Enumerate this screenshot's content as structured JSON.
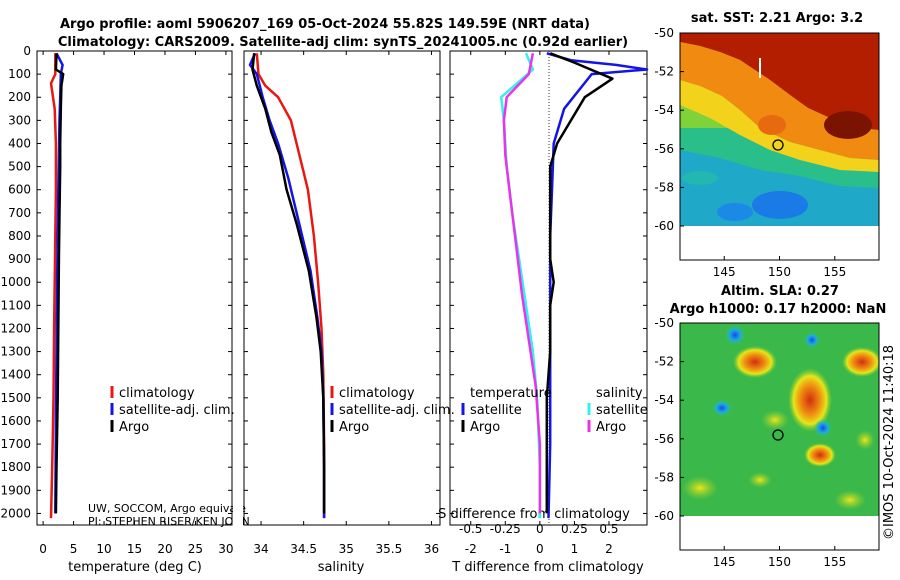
{
  "header": {
    "title_line1": "Argo profile: aoml 5906207_169 05-Oct-2024 55.82S 149.59E (NRT data)",
    "title_line2": "Climatology: CARS2009. Satellite-adj clim: synTS_20241005.nc (0.92d earlier)"
  },
  "credits": {
    "line1": "UW, SOCCOM, Argo equivale",
    "line2": "PI: STEPHEN RISER/KEN JOHN",
    "watermark": "©IMOS 10-Oct-2024 11:40:18"
  },
  "colors": {
    "climatology": "#e8170f",
    "satellite": "#1414e6",
    "argo": "#000000",
    "cyan": "#33f0f0",
    "magenta": "#e833e8"
  },
  "legend": {
    "climatology": "climatology",
    "satellite_clim": "satellite-adj. clim.",
    "argo": "Argo",
    "temperature": "temperature",
    "salinity": "salinity",
    "satellite": "satellite"
  },
  "chart_data": [
    {
      "type": "line",
      "title": "",
      "xlabel": "temperature (deg C)",
      "ylabel": "",
      "xlim": [
        -1,
        31
      ],
      "ylim": [
        2050,
        0
      ],
      "xticks": [
        0,
        5,
        10,
        15,
        20,
        25,
        30
      ],
      "xtick_labels": [
        "0",
        "5",
        "10",
        "15",
        "20",
        "25",
        "30"
      ],
      "yticks": [
        0,
        100,
        200,
        300,
        400,
        500,
        600,
        700,
        800,
        900,
        1000,
        1100,
        1200,
        1300,
        1400,
        1500,
        1600,
        1700,
        1800,
        1900,
        2000
      ],
      "ytick_labels": [
        "0",
        "100",
        "200",
        "300",
        "400",
        "500",
        "600",
        "700",
        "800",
        "900",
        "1000",
        "1100",
        "1200",
        "1300",
        "1400",
        "1500",
        "1600",
        "1700",
        "1800",
        "1900",
        "2000"
      ],
      "series": [
        {
          "name": "climatology",
          "color": "#e8170f",
          "x": [
            2.0,
            2.0,
            1.3,
            1.9,
            2.1,
            2.1,
            2.0,
            1.9,
            1.8,
            1.7,
            1.5,
            1.3
          ],
          "y": [
            10,
            100,
            140,
            250,
            400,
            600,
            800,
            1000,
            1200,
            1500,
            1800,
            2020
          ]
        },
        {
          "name": "satellite-adj. clim.",
          "color": "#1414e6",
          "x": [
            2.2,
            3.2,
            2.9,
            2.8,
            2.7,
            2.6,
            2.5,
            2.4,
            2.3,
            2.2,
            2.1,
            2.0
          ],
          "y": [
            10,
            60,
            100,
            200,
            300,
            450,
            600,
            800,
            1000,
            1300,
            1600,
            2000
          ]
        },
        {
          "name": "Argo",
          "color": "#000000",
          "x": [
            2.2,
            2.1,
            3.3,
            3.0,
            2.9,
            2.8,
            2.8,
            2.7,
            2.6,
            2.5,
            2.4,
            2.2,
            2.1
          ],
          "y": [
            10,
            80,
            100,
            150,
            250,
            400,
            500,
            700,
            900,
            1200,
            1500,
            1800,
            2000
          ]
        }
      ],
      "legend_entries": [
        "climatology",
        "satellite-adj. clim.",
        "Argo"
      ]
    },
    {
      "type": "line",
      "xlabel": "salinity",
      "xlim": [
        33.8,
        36.1
      ],
      "ylim": [
        2050,
        0
      ],
      "xticks": [
        34,
        34.5,
        35,
        35.5,
        36
      ],
      "xtick_labels": [
        "34",
        "34.5",
        "35",
        "35.5",
        "36"
      ],
      "series": [
        {
          "name": "climatology",
          "color": "#e8170f",
          "x": [
            33.95,
            33.97,
            34.05,
            34.2,
            34.35,
            34.45,
            34.55,
            34.62,
            34.67,
            34.71,
            34.73,
            34.74,
            34.74
          ],
          "y": [
            10,
            100,
            150,
            200,
            300,
            450,
            600,
            800,
            1000,
            1200,
            1400,
            1700,
            2020
          ]
        },
        {
          "name": "satellite-adj. clim.",
          "color": "#1414e6",
          "x": [
            33.93,
            33.87,
            33.95,
            34.02,
            34.1,
            34.2,
            34.32,
            34.45,
            34.58,
            34.66,
            34.71,
            34.73,
            34.74,
            34.74
          ],
          "y": [
            10,
            60,
            100,
            200,
            300,
            400,
            550,
            750,
            950,
            1150,
            1300,
            1500,
            1800,
            2020
          ]
        },
        {
          "name": "Argo",
          "color": "#000000",
          "x": [
            33.92,
            33.9,
            33.95,
            34.05,
            34.12,
            34.22,
            34.3,
            34.42,
            34.56,
            34.65,
            34.7,
            34.73,
            34.74,
            34.74
          ],
          "y": [
            10,
            80,
            150,
            250,
            350,
            450,
            600,
            750,
            950,
            1150,
            1300,
            1500,
            1800,
            2000
          ]
        }
      ],
      "legend_entries": [
        "climatology",
        "satellite-adj. clim.",
        "Argo"
      ]
    },
    {
      "type": "line",
      "xlabel": "T difference from climatology",
      "xlabel_top": "S difference from climatology",
      "xlim": [
        -2.6,
        3.1
      ],
      "ylim": [
        2050,
        0
      ],
      "xticks": [
        -2,
        -1,
        0,
        1,
        2
      ],
      "xtick_labels": [
        "-2",
        "-1",
        "0",
        "1",
        "2"
      ],
      "xticks_top_values": [
        -0.5,
        -0.25,
        0,
        0.25,
        0.5
      ],
      "xticks_top_labels": [
        "-0.5",
        "-0.25",
        "0",
        "0.25",
        "0.5"
      ],
      "series": [
        {
          "name": "satellite temperature",
          "color": "#1414e6",
          "x": [
            0.2,
            0.9,
            2.2,
            3.1,
            1.5,
            0.7,
            0.4,
            0.35,
            0.3,
            0.3,
            0.3,
            0.3,
            0.3,
            0.25
          ],
          "y": [
            10,
            40,
            60,
            80,
            100,
            250,
            400,
            600,
            800,
            1000,
            1200,
            1400,
            1700,
            2020
          ]
        },
        {
          "name": "Argo temperature",
          "color": "#000000",
          "x": [
            0.3,
            1.0,
            2.1,
            1.3,
            0.5,
            0.3,
            0.3,
            0.3,
            0.4,
            0.3,
            0.3,
            0.2,
            0.2,
            0.2
          ],
          "y": [
            10,
            50,
            120,
            200,
            400,
            500,
            700,
            900,
            1000,
            1100,
            1300,
            1500,
            1700,
            2000
          ]
        },
        {
          "name": "satellite salinity",
          "color": "#33f0f0",
          "x": [
            -0.1,
            -0.05,
            -0.28,
            -0.26,
            -0.24,
            -0.2,
            -0.15,
            -0.1,
            -0.05,
            -0.02,
            0.0,
            0.0
          ],
          "y": [
            10,
            80,
            200,
            300,
            500,
            700,
            900,
            1100,
            1300,
            1500,
            1800,
            2020
          ]
        },
        {
          "name": "Argo salinity",
          "color": "#e833e8",
          "x": [
            -0.05,
            -0.08,
            -0.24,
            -0.26,
            -0.25,
            -0.21,
            -0.17,
            -0.13,
            -0.08,
            -0.03,
            0.0,
            0.0
          ],
          "y": [
            10,
            100,
            200,
            300,
            450,
            650,
            850,
            1050,
            1250,
            1450,
            1700,
            2000
          ]
        }
      ],
      "legend_groups": [
        {
          "heading": "temperature",
          "entries": [
            "satellite",
            "Argo"
          ]
        },
        {
          "heading": "salinity",
          "entries": [
            "satellite",
            "Argo"
          ]
        }
      ]
    },
    {
      "type": "heatmap",
      "title": "sat. SST: 2.21 Argo: 3.2",
      "xlim": [
        141,
        159
      ],
      "ylim": [
        -60,
        -50
      ],
      "xticks": [
        145,
        150,
        155
      ],
      "xtick_labels": [
        "145",
        "150",
        "155"
      ],
      "yticks": [
        -50,
        -52,
        -54,
        -56,
        -58,
        -60
      ],
      "ytick_labels": [
        "-50",
        "-52",
        "-54",
        "-56",
        "-58",
        "-60"
      ],
      "marker": {
        "lon": 149.59,
        "lat": -55.82
      }
    },
    {
      "type": "heatmap",
      "title": "Altim. SLA: 0.27",
      "title_line2": "Argo h1000: 0.17 h2000: NaN",
      "xlim": [
        141,
        159
      ],
      "ylim": [
        -60,
        -50
      ],
      "xticks": [
        145,
        150,
        155
      ],
      "xtick_labels": [
        "145",
        "150",
        "155"
      ],
      "yticks": [
        -50,
        -52,
        -54,
        -56,
        -58,
        -60
      ],
      "ytick_labels": [
        "-50",
        "-52",
        "-54",
        "-56",
        "-58",
        "-60"
      ],
      "marker": {
        "lon": 149.59,
        "lat": -55.82
      }
    }
  ]
}
